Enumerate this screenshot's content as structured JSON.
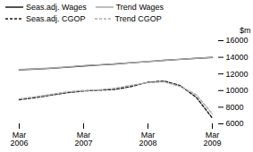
{
  "chart_data": {
    "type": "line",
    "ylabel": "$m",
    "categories": [
      "Mar\n2006",
      null,
      null,
      null,
      "Mar\n2007",
      null,
      null,
      null,
      "Mar\n2008",
      null,
      null,
      null,
      "Mar\n2009"
    ],
    "series": [
      {
        "name": "Seas.adj. Wages",
        "color": "#1a1a1a",
        "line_style": "solid",
        "values": [
          12500,
          12580,
          12680,
          12820,
          12970,
          13080,
          13200,
          13350,
          13490,
          13630,
          13760,
          13870,
          13980
        ]
      },
      {
        "name": "Trend Wages",
        "color": "#aaaaaa",
        "line_style": "solid",
        "values": [
          12530,
          12620,
          12720,
          12860,
          13000,
          13110,
          13220,
          13360,
          13500,
          13630,
          13760,
          13870,
          14000
        ]
      },
      {
        "name": "Seas.adj. CGOP",
        "color": "#1a1a1a",
        "line_style": "dashed",
        "values": [
          8900,
          9150,
          9450,
          9750,
          9950,
          10050,
          10150,
          10500,
          11000,
          11150,
          10600,
          9200,
          6700
        ]
      },
      {
        "name": "Trend CGOP",
        "color": "#aaaaaa",
        "line_style": "dashed",
        "values": [
          9000,
          9250,
          9550,
          9850,
          10000,
          10100,
          10300,
          10650,
          10950,
          11050,
          10500,
          9500,
          7200
        ]
      }
    ],
    "ylim": [
      6000,
      16000
    ],
    "yticks": [
      6000,
      8000,
      10000,
      12000,
      14000,
      16000
    ],
    "grid": false,
    "legend": "upper left"
  }
}
